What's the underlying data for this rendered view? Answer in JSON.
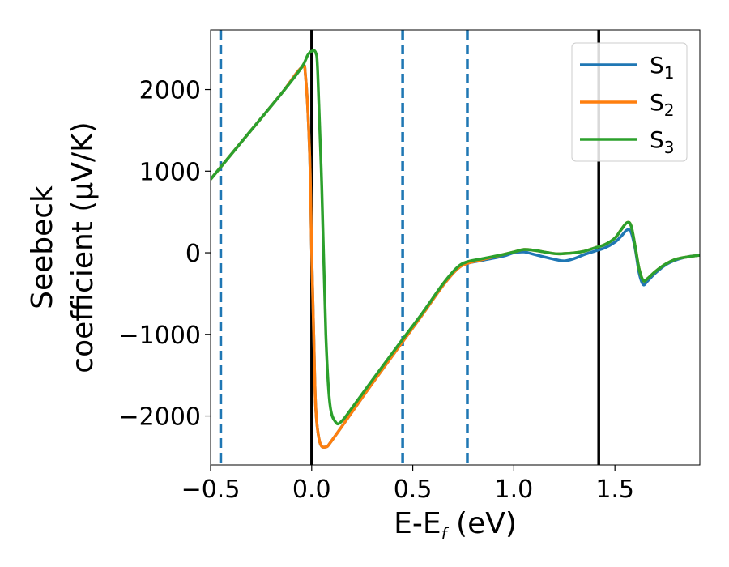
{
  "chart_data": {
    "type": "line",
    "xlabel": "E-E",
    "xlabel_sub": "f",
    "xlabel_unit": " (eV)",
    "ylabel_line1": "Seebeck",
    "ylabel_line2": "coefficient  (μV/K)",
    "xlim": [
      -0.5,
      1.92
    ],
    "ylim": [
      -2600,
      2730
    ],
    "x_ticks": [
      -0.5,
      0.0,
      0.5,
      1.0,
      1.5
    ],
    "x_tick_labels": [
      "−0.5",
      "0.0",
      "0.5",
      "1.0",
      "1.5"
    ],
    "y_ticks": [
      -2000,
      -1000,
      0,
      1000,
      2000
    ],
    "y_tick_labels": [
      "−2000",
      "−1000",
      "0",
      "1000",
      "2000"
    ],
    "grid": false,
    "legend_position": "top-right",
    "vlines_solid": [
      0.0,
      1.42
    ],
    "vlines_dashed": [
      -0.45,
      0.45,
      0.77
    ],
    "vline_solid_color": "#000000",
    "vline_dashed_color": "#1f77b4",
    "series": [
      {
        "name": "S",
        "sub": "1",
        "color": "#1f77b4",
        "x": [
          -0.5,
          -0.45,
          -0.3,
          -0.15,
          -0.05,
          -0.03,
          -0.01,
          0.0,
          0.01,
          0.02,
          0.04,
          0.07,
          0.1,
          0.2,
          0.3,
          0.45,
          0.55,
          0.65,
          0.72,
          0.77,
          0.85,
          0.95,
          1.0,
          1.05,
          1.1,
          1.2,
          1.25,
          1.3,
          1.35,
          1.4,
          1.45,
          1.5,
          1.53,
          1.56,
          1.58,
          1.6,
          1.62,
          1.64,
          1.66,
          1.7,
          1.75,
          1.8,
          1.86,
          1.92
        ],
        "y": [
          900,
          1050,
          1500,
          1950,
          2270,
          2150,
          1200,
          0,
          -1000,
          -1900,
          -2320,
          -2380,
          -2300,
          -1950,
          -1600,
          -1090,
          -750,
          -400,
          -200,
          -130,
          -90,
          -40,
          0,
          10,
          -20,
          -80,
          -100,
          -70,
          -20,
          20,
          60,
          130,
          200,
          280,
          250,
          50,
          -250,
          -390,
          -350,
          -250,
          -150,
          -90,
          -50,
          -30
        ]
      },
      {
        "name": "S",
        "sub": "2",
        "color": "#ff7f0e",
        "x": [
          -0.5,
          -0.45,
          -0.3,
          -0.15,
          -0.05,
          -0.03,
          -0.01,
          0.0,
          0.01,
          0.02,
          0.04,
          0.07,
          0.1,
          0.2,
          0.3,
          0.45,
          0.55,
          0.65,
          0.72,
          0.77,
          0.85,
          0.95,
          1.0,
          1.05,
          1.1,
          1.2,
          1.25,
          1.3,
          1.35,
          1.4,
          1.45,
          1.5,
          1.53,
          1.56,
          1.58,
          1.6,
          1.62,
          1.64,
          1.66,
          1.7,
          1.75,
          1.8,
          1.86,
          1.92
        ],
        "y": [
          900,
          1050,
          1500,
          1950,
          2270,
          2150,
          1200,
          0,
          -1000,
          -1900,
          -2320,
          -2380,
          -2300,
          -1950,
          -1600,
          -1090,
          -750,
          -400,
          -200,
          -130,
          -80,
          -20,
          10,
          40,
          30,
          -10,
          -10,
          0,
          20,
          60,
          100,
          180,
          280,
          370,
          330,
          80,
          -200,
          -340,
          -320,
          -230,
          -140,
          -80,
          -50,
          -30
        ]
      },
      {
        "name": "S",
        "sub": "3",
        "color": "#2ca02c",
        "x": [
          -0.5,
          -0.45,
          -0.3,
          -0.15,
          -0.05,
          -0.02,
          0.0,
          0.02,
          0.03,
          0.05,
          0.07,
          0.09,
          0.12,
          0.15,
          0.2,
          0.3,
          0.45,
          0.55,
          0.65,
          0.72,
          0.77,
          0.85,
          0.95,
          1.0,
          1.05,
          1.1,
          1.2,
          1.25,
          1.3,
          1.35,
          1.4,
          1.45,
          1.5,
          1.53,
          1.56,
          1.58,
          1.6,
          1.62,
          1.64,
          1.66,
          1.7,
          1.75,
          1.8,
          1.86,
          1.92
        ],
        "y": [
          900,
          1050,
          1500,
          1950,
          2270,
          2420,
          2470,
          2450,
          2200,
          800,
          -1000,
          -1850,
          -2080,
          -2060,
          -1900,
          -1560,
          -1060,
          -730,
          -380,
          -180,
          -110,
          -70,
          -20,
          10,
          40,
          30,
          -10,
          -10,
          0,
          20,
          60,
          100,
          180,
          280,
          370,
          330,
          80,
          -200,
          -340,
          -320,
          -230,
          -140,
          -80,
          -50,
          -30
        ]
      }
    ]
  }
}
